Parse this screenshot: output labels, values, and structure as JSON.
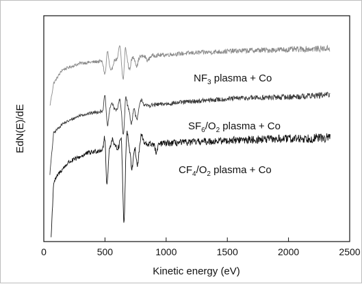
{
  "chart_data": {
    "type": "line",
    "title": "",
    "xlabel": "Kinetic energy (eV)",
    "ylabel": "EdN(E)/dE",
    "xlim": [
      0,
      2500
    ],
    "x_ticks": [
      0,
      500,
      1000,
      1500,
      2000,
      2500
    ],
    "y_ticks_shown": false,
    "grid": false,
    "legend": "none",
    "annotations": [
      {
        "base": "NF",
        "sub": "3",
        "rest": " plasma + Co",
        "series": "NF3"
      },
      {
        "parts": [
          [
            "SF",
            ""
          ],
          [
            "6",
            "sub"
          ],
          [
            "/O",
            ""
          ],
          [
            "2",
            "sub"
          ],
          [
            " plasma + Co",
            ""
          ]
        ],
        "series": "SF6O2"
      },
      {
        "parts": [
          [
            "CF",
            ""
          ],
          [
            "4",
            "sub"
          ],
          [
            "/O",
            ""
          ],
          [
            "2",
            "sub"
          ],
          [
            " plasma + Co",
            ""
          ]
        ],
        "series": "CF4O2"
      }
    ],
    "series": [
      {
        "key": "NF3",
        "color": "#8a8a8a",
        "x_range": [
          50,
          2340
        ],
        "baseline": [
          [
            50,
            0.6
          ],
          [
            80,
            0.7
          ],
          [
            150,
            0.76
          ],
          [
            300,
            0.79
          ],
          [
            500,
            0.8
          ],
          [
            800,
            0.82
          ],
          [
            1200,
            0.835
          ],
          [
            1600,
            0.845
          ],
          [
            2000,
            0.85
          ],
          [
            2340,
            0.855
          ]
        ],
        "noise": 0.01,
        "peaks": [
          [
            500,
            -0.06,
            10
          ],
          [
            520,
            0.05,
            8
          ],
          [
            550,
            -0.05,
            12
          ],
          [
            620,
            0.06,
            8
          ],
          [
            650,
            -0.1,
            10
          ],
          [
            665,
            0.07,
            8
          ],
          [
            700,
            -0.05,
            10
          ],
          [
            760,
            -0.04,
            10
          ],
          [
            850,
            -0.02,
            12
          ]
        ]
      },
      {
        "key": "SF6O2",
        "color": "#3a3a3a",
        "x_range": [
          50,
          2340
        ],
        "baseline": [
          [
            50,
            0.3
          ],
          [
            80,
            0.48
          ],
          [
            150,
            0.52
          ],
          [
            300,
            0.56
          ],
          [
            500,
            0.58
          ],
          [
            800,
            0.6
          ],
          [
            1200,
            0.62
          ],
          [
            1600,
            0.635
          ],
          [
            2000,
            0.64
          ],
          [
            2340,
            0.65
          ]
        ],
        "noise": 0.01,
        "peaks": [
          [
            500,
            0.07,
            8
          ],
          [
            520,
            -0.07,
            9
          ],
          [
            555,
            0.03,
            10
          ],
          [
            620,
            0.04,
            8
          ],
          [
            650,
            -0.12,
            9
          ],
          [
            670,
            0.06,
            8
          ],
          [
            715,
            -0.07,
            10
          ],
          [
            760,
            -0.06,
            10
          ],
          [
            800,
            0.03,
            10
          ]
        ]
      },
      {
        "key": "CF4O2",
        "color": "#111111",
        "x_range": [
          60,
          2340
        ],
        "baseline": [
          [
            60,
            0.02
          ],
          [
            80,
            0.26
          ],
          [
            120,
            0.3
          ],
          [
            200,
            0.35
          ],
          [
            350,
            0.39
          ],
          [
            500,
            0.41
          ],
          [
            800,
            0.43
          ],
          [
            1200,
            0.44
          ],
          [
            1600,
            0.45
          ],
          [
            2000,
            0.455
          ],
          [
            2340,
            0.46
          ]
        ],
        "noise": 0.015,
        "peaks": [
          [
            500,
            0.08,
            8
          ],
          [
            515,
            -0.17,
            9
          ],
          [
            560,
            0.04,
            10
          ],
          [
            630,
            0.05,
            8
          ],
          [
            655,
            -0.33,
            9
          ],
          [
            680,
            0.07,
            8
          ],
          [
            720,
            -0.1,
            10
          ],
          [
            765,
            -0.09,
            10
          ],
          [
            800,
            0.04,
            10
          ],
          [
            920,
            -0.04,
            10
          ]
        ]
      }
    ]
  }
}
